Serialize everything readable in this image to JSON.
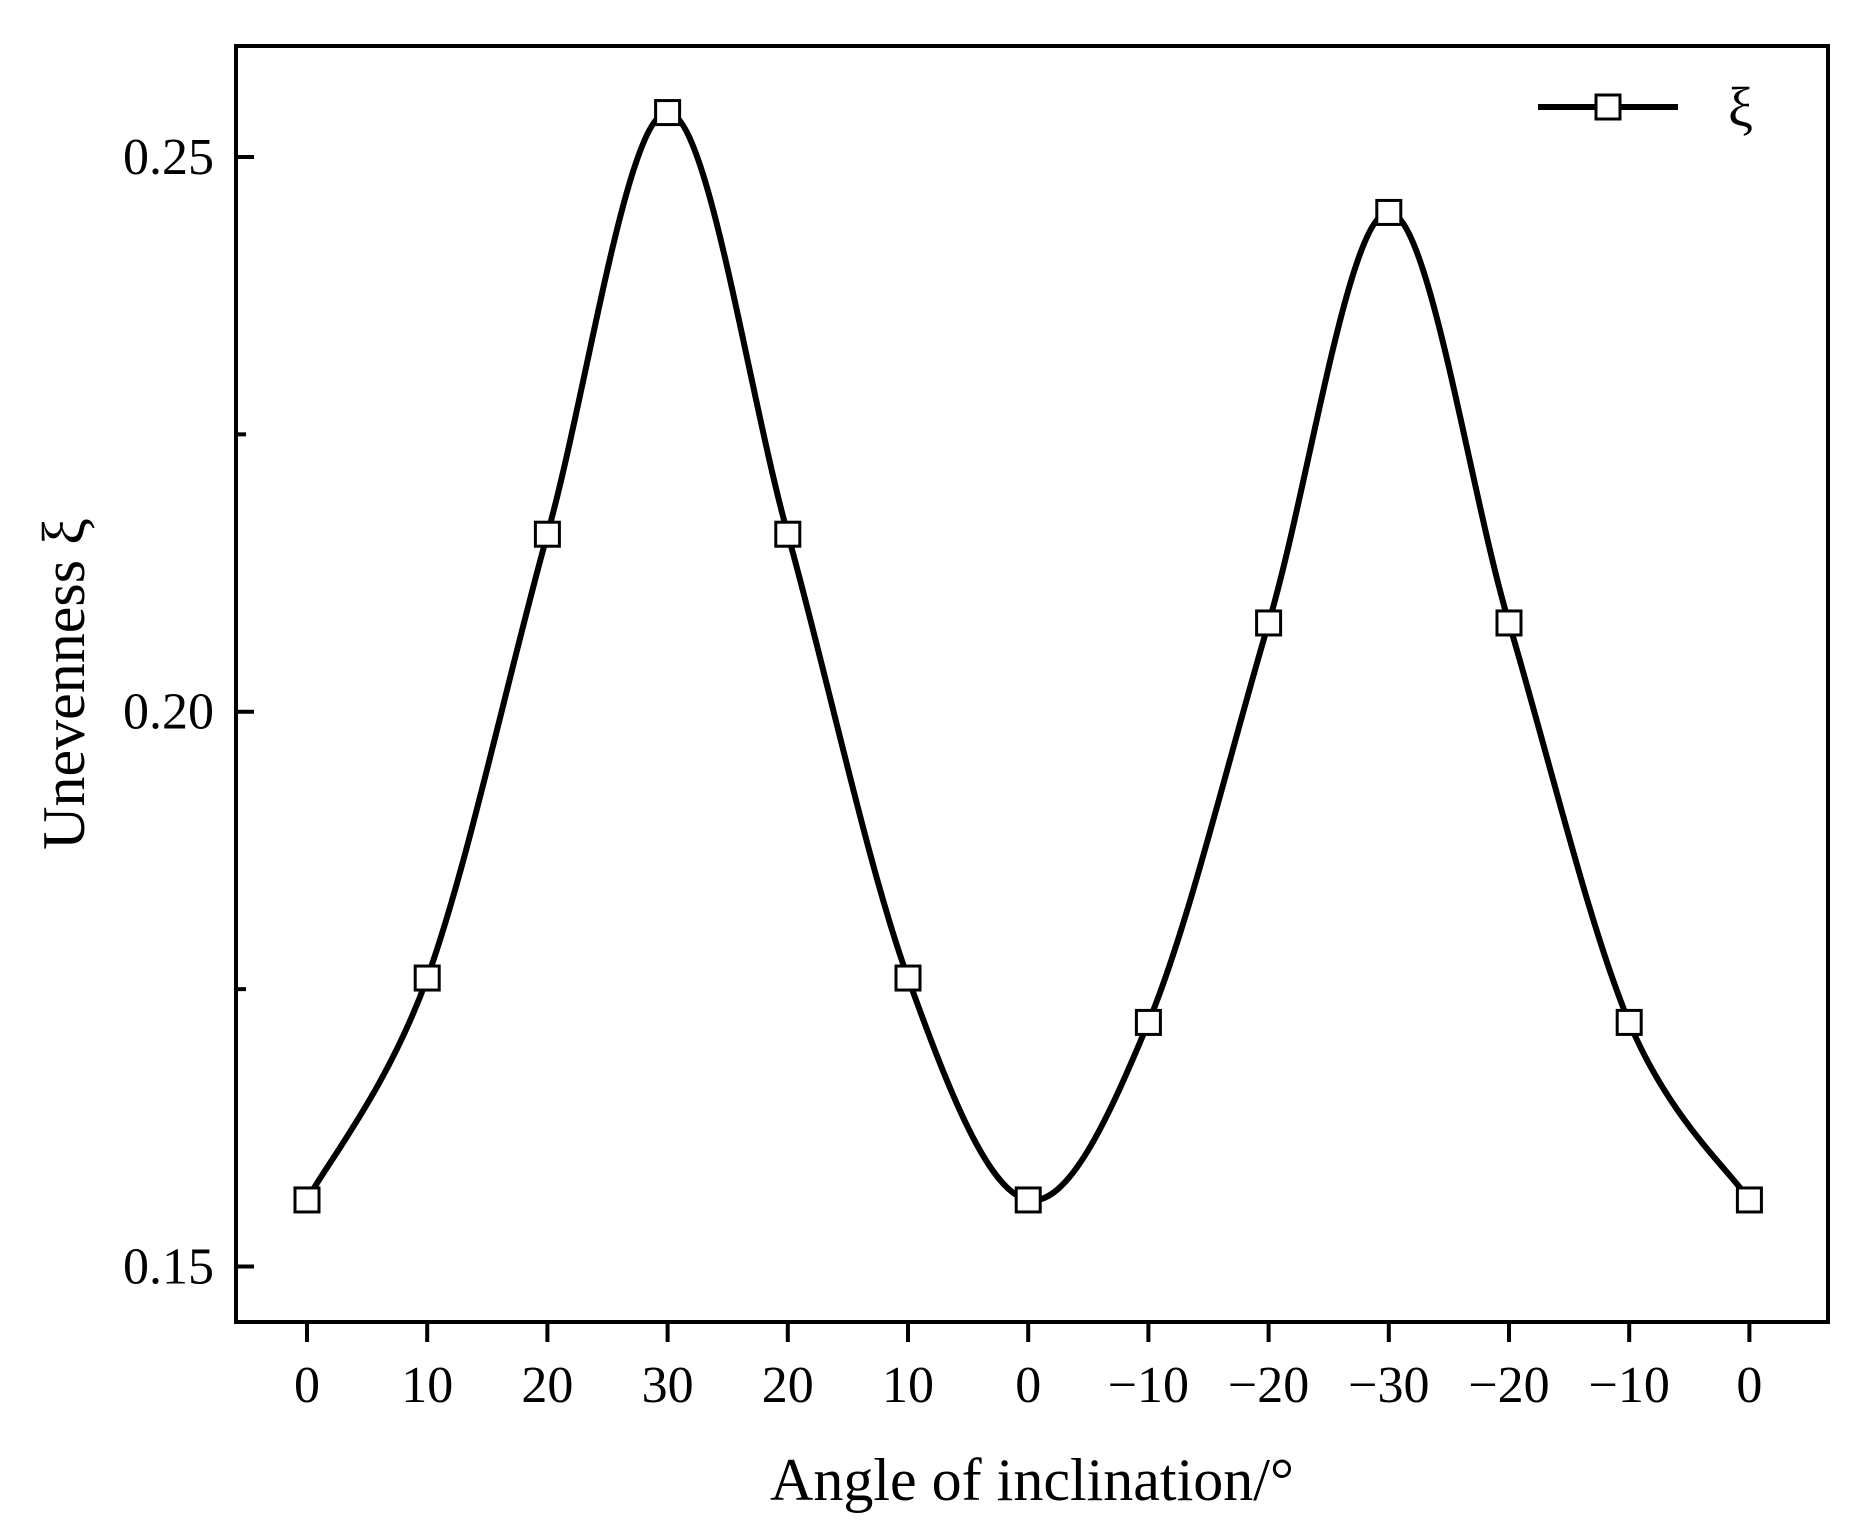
{
  "chart_data": {
    "type": "line",
    "title": "",
    "xlabel": "Angle of inclination/°",
    "ylabel": "Unevenness ξ",
    "categories": [
      "0",
      "10",
      "20",
      "30",
      "20",
      "10",
      "0",
      "−10",
      "−20",
      "−30",
      "−20",
      "−10",
      "0"
    ],
    "x": [
      0,
      10,
      20,
      30,
      20,
      10,
      0,
      -10,
      -20,
      -30,
      -20,
      -10,
      0
    ],
    "series": [
      {
        "name": "ξ",
        "values": [
          0.156,
          0.176,
          0.216,
          0.254,
          0.216,
          0.176,
          0.156,
          0.172,
          0.208,
          0.245,
          0.208,
          0.172,
          0.156
        ],
        "marker": "hollow-square",
        "color": "#000000"
      }
    ],
    "ylim": [
      0.145,
      0.26
    ],
    "yticks": [
      0.15,
      0.2,
      0.25
    ],
    "ytick_labels": [
      "0.15",
      "0.20",
      "0.25"
    ],
    "ytick_minor": [
      0.175,
      0.225
    ],
    "legend_position": "top-right",
    "grid": false,
    "smoothed": true
  }
}
